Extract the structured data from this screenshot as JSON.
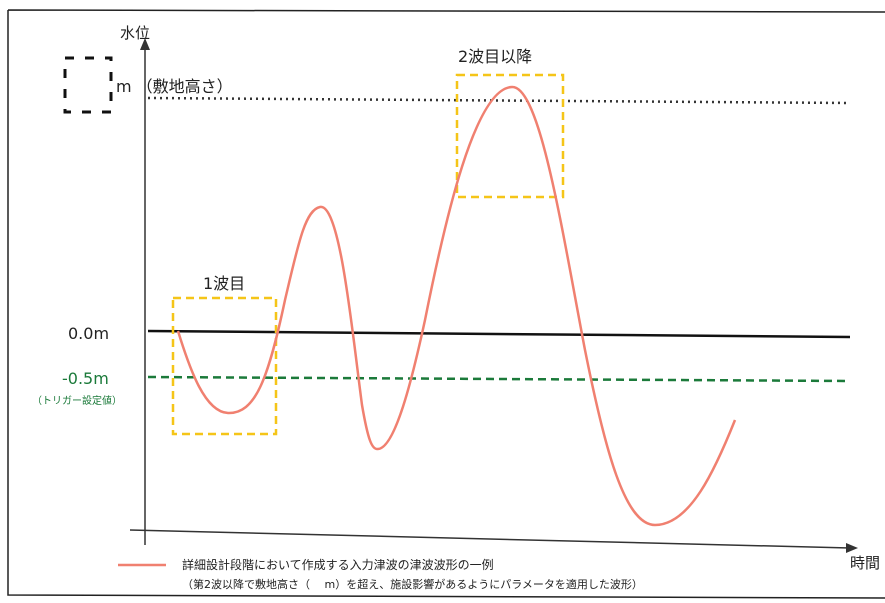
{
  "chart_data": {
    "type": "line",
    "ylabel": "水位",
    "xlabel": "時間",
    "reference_lines": [
      {
        "label": "m （敷地高さ）",
        "style": "dotted",
        "color": "#333333"
      },
      {
        "label": "0.0m",
        "style": "solid",
        "color": "#111111"
      },
      {
        "label": "-0.5m",
        "sublabel": "（トリガー設定値）",
        "style": "dashed",
        "color": "#1b7a3a"
      }
    ],
    "annotations": [
      {
        "label": "1波目",
        "color": "#f5c518"
      },
      {
        "label": "2波目以降",
        "color": "#f5c518"
      }
    ],
    "series": [
      {
        "name": "詳細設計段階において作成する入力津波の津波波形の一例",
        "note": "（第2波以降で敷地高さ（　 m）を超え、施設影響があるようにパラメータを適用した波形）",
        "color": "#f08070"
      }
    ],
    "grid": false,
    "legend_position": "bottom"
  }
}
